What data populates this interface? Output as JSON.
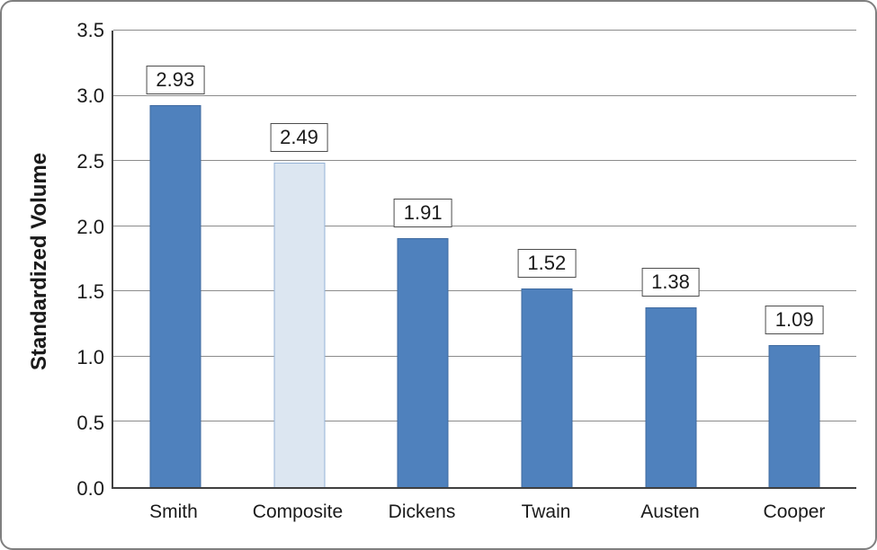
{
  "chart_data": {
    "type": "bar",
    "categories": [
      "Smith",
      "Composite",
      "Dickens",
      "Twain",
      "Austen",
      "Cooper"
    ],
    "values": [
      2.93,
      2.49,
      1.91,
      1.52,
      1.38,
      1.09
    ],
    "value_labels": [
      "2.93",
      "2.49",
      "1.91",
      "1.52",
      "1.38",
      "1.09"
    ],
    "title": "",
    "xlabel": "",
    "ylabel": "Standardized Volume",
    "ylim": [
      0,
      3.5
    ],
    "ytick_step": 0.5,
    "ytick_labels": [
      "0.0",
      "0.5",
      "1.0",
      "1.5",
      "2.0",
      "2.5",
      "3.0",
      "3.5"
    ],
    "grid": true,
    "legend": "none",
    "bar_fill_colors": [
      "#4f81bd",
      "#dce6f1",
      "#4f81bd",
      "#4f81bd",
      "#4f81bd",
      "#4f81bd"
    ],
    "bar_border_colors": [
      "#3f6aa0",
      "#95b3d7",
      "#3f6aa0",
      "#3f6aa0",
      "#3f6aa0",
      "#3f6aa0"
    ],
    "gridline_color": "#8c8c8c",
    "axis_color": "#404040",
    "frame_border_color": "#7f7f7f"
  }
}
